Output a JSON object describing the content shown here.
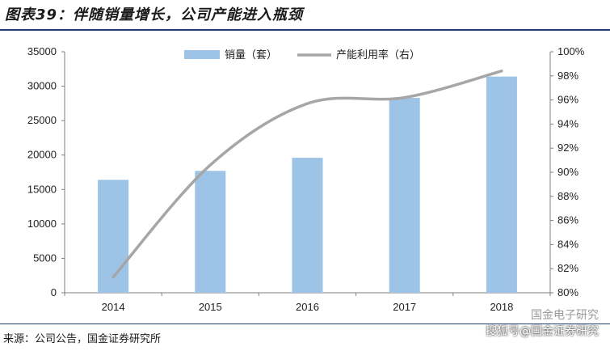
{
  "header": {
    "title": "图表39：伴随销量增长，公司产能进入瓶颈"
  },
  "footer": {
    "source": "来源：公司公告，国金证券研究所"
  },
  "watermark": {
    "line1": "国金电子研究",
    "line2": "搜狐号@国金证券研究"
  },
  "colors": {
    "bar": "#9dc3e6",
    "line": "#a6a6a6",
    "rule": "#1f3f70"
  },
  "chart_data": {
    "type": "bar",
    "categories": [
      "2014",
      "2015",
      "2016",
      "2017",
      "2018"
    ],
    "series": [
      {
        "name": "销量（套）",
        "type": "bar",
        "axis": "left",
        "values": [
          16400,
          17700,
          19600,
          28300,
          31400
        ]
      },
      {
        "name": "产能利用率（右）",
        "type": "line",
        "axis": "right",
        "values": [
          81.3,
          90.6,
          95.7,
          96.2,
          98.4
        ]
      }
    ],
    "y_left": {
      "min": 0,
      "max": 35000,
      "ticks": [
        0,
        5000,
        10000,
        15000,
        20000,
        25000,
        30000,
        35000
      ]
    },
    "y_right": {
      "min": 80,
      "max": 100,
      "ticks": [
        "80%",
        "82%",
        "84%",
        "86%",
        "88%",
        "90%",
        "92%",
        "94%",
        "96%",
        "98%",
        "100%"
      ]
    },
    "legend_position": "top-center",
    "grid": false
  }
}
